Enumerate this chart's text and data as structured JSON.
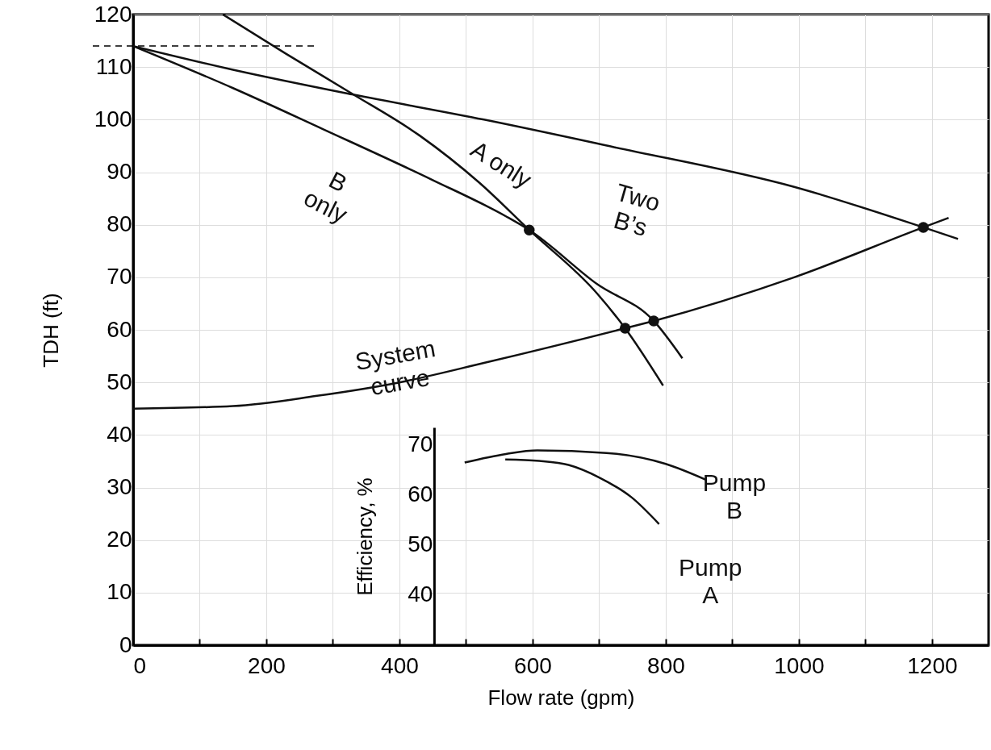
{
  "chart_data": {
    "type": "line",
    "xlabel": "Flow rate (gpm)",
    "ylabel": "TDH (ft)",
    "y2label": "Efficiency, %",
    "xlim": [
      0,
      1285
    ],
    "ylim": [
      0,
      120
    ],
    "y2lim": [
      30,
      73.5
    ],
    "xticks": [
      0,
      {
        "value": 100,
        "label": null
      },
      200,
      {
        "value": 300,
        "label": null
      },
      400,
      {
        "value": 500,
        "label": null
      },
      600,
      {
        "value": 700,
        "label": null
      },
      800,
      {
        "value": 900,
        "label": null
      },
      1000,
      {
        "value": 1100,
        "label": null
      },
      1200
    ],
    "yticks": [
      0,
      10,
      20,
      30,
      40,
      50,
      60,
      70,
      80,
      90,
      100,
      110,
      120
    ],
    "y2ticks": [
      40,
      50,
      60,
      70
    ],
    "grid": true,
    "line_style": "solid",
    "ref_lines": [
      {
        "axis": "y",
        "value": 114,
        "line_style": "dashed",
        "color": "#000000"
      }
    ],
    "series": [
      {
        "name": "B only",
        "color": "#111111",
        "x": [
          0,
          150,
          285,
          450,
          560,
          595,
          697,
          782,
          825
        ],
        "values": [
          114,
          106,
          98.2,
          88.5,
          81.6,
          79,
          68.7,
          61.7,
          54.6
        ]
      },
      {
        "name": "A only",
        "color": "#111111",
        "x": [
          135,
          230,
          328,
          430,
          520,
          595,
          697,
          739,
          796
        ],
        "values": [
          120,
          112.5,
          105,
          97,
          88,
          79,
          66.9,
          60.3,
          49.4
        ]
      },
      {
        "name": "Two B’s",
        "color": "#111111",
        "x": [
          0,
          150,
          329,
          527,
          721,
          993,
          1187,
          1239
        ],
        "values": [
          114,
          109.5,
          104.8,
          100,
          94.8,
          87.2,
          79.5,
          77.3
        ]
      },
      {
        "name": "System curve",
        "color": "#111111",
        "x": [
          0,
          150,
          274,
          400,
          527,
          739,
          782,
          993,
          1187,
          1225
        ],
        "values": [
          45,
          45.5,
          47.4,
          50,
          53.7,
          60.3,
          61.7,
          70,
          79.5,
          81.3
        ]
      },
      {
        "type": "scatter",
        "marker": "circle",
        "color": "#111111",
        "x": [
          595,
          739,
          782,
          1187
        ],
        "values": [
          79,
          60.3,
          61.7,
          79.5
        ]
      },
      {
        "name": "Pump B",
        "axis": "y2",
        "color": "#111111",
        "x": [
          498,
          560,
          607,
          711,
          800,
          861
        ],
        "values": [
          66.5,
          68.2,
          68.9,
          68.4,
          66.2,
          63
        ]
      },
      {
        "name": "Pump A",
        "axis": "y2",
        "color": "#111111",
        "x": [
          559,
          610,
          654,
          700,
          749,
          790
        ],
        "values": [
          67.1,
          66.8,
          66,
          63.5,
          59.5,
          54.2
        ]
      }
    ]
  }
}
